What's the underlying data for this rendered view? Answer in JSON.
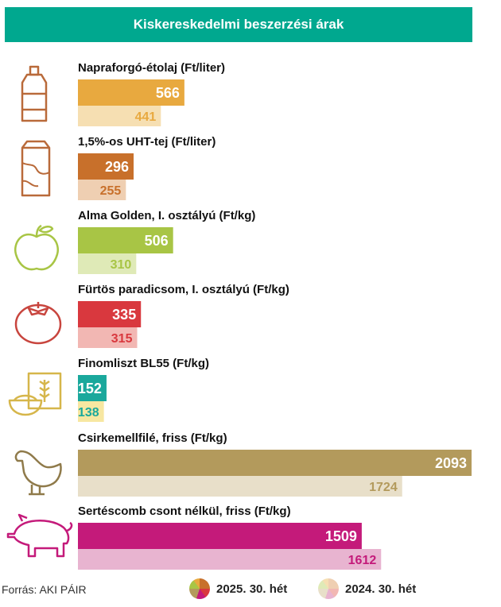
{
  "header": {
    "title": "Kiskereskedelmi beszerzési árak"
  },
  "source": "Forrás: AKI PÁIR",
  "colors": {
    "oil": "#e8a93f",
    "oil_light": "#f6dfb2",
    "milk": "#c8702b",
    "milk_light": "#efcfb2",
    "apple": "#a8c545",
    "apple_light": "#dfeab7",
    "tomato": "#d9383e",
    "tomato_light": "#f2b7b3",
    "flour": "#1aa89c",
    "flour_light": "#f7e7a1",
    "chicken": "#b39a5c",
    "chicken_light": "#e8dfc9",
    "pork": "#c41a7a",
    "pork_light": "#e8b4d0"
  },
  "chart_data": {
    "type": "bar",
    "title": "Kiskereskedelmi beszerzési árak",
    "categories": [
      "Napraforgó-étolaj (Ft/liter)",
      "1,5%-os UHT-tej (Ft/liter)",
      "Alma Golden, I. osztályú (Ft/kg)",
      "Fürtös paradicsom, I. osztályú (Ft/kg)",
      "Finomliszt BL55 (Ft/kg)",
      "Csirkemellfilé, friss (Ft/kg)",
      "Sertéscomb csont nélkül, friss (Ft/kg)"
    ],
    "icons": [
      "oil-bottle-icon",
      "milk-carton-icon",
      "apple-icon",
      "tomato-icon",
      "flour-bag-icon",
      "chicken-icon",
      "pig-icon"
    ],
    "series": [
      {
        "name": "2025. 30. hét",
        "values": [
          566,
          296,
          506,
          335,
          152,
          2093,
          1509
        ]
      },
      {
        "name": "2024. 30. hét",
        "values": [
          441,
          255,
          310,
          315,
          138,
          1724,
          1612
        ]
      }
    ],
    "xlim": [
      0,
      2093
    ],
    "legend": "bottom",
    "grid": false
  }
}
